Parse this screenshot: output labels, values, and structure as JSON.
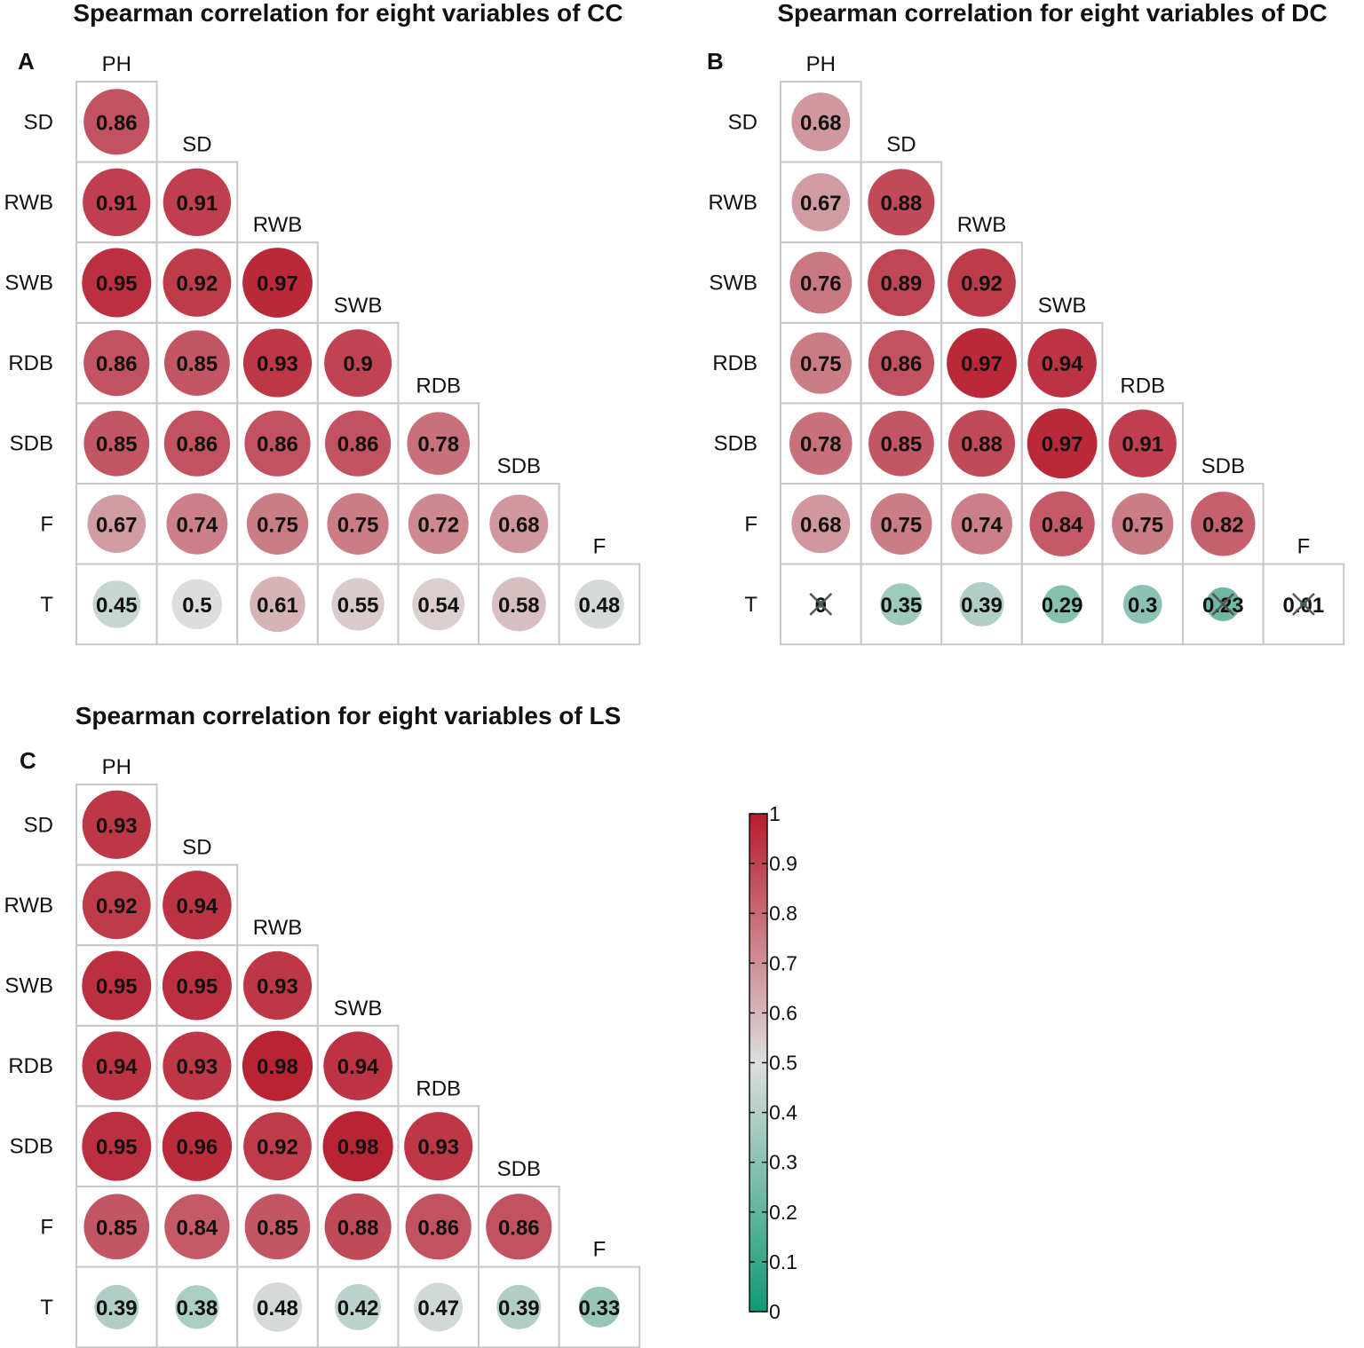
{
  "variables": [
    "PH",
    "SD",
    "RWB",
    "SWB",
    "RDB",
    "SDB",
    "F",
    "T"
  ],
  "chart_data": [
    {
      "type": "heatmap",
      "panel": "A",
      "title": "Spearman correlation for eight variables of CC",
      "col_labels": [
        "PH",
        "SD",
        "RWB",
        "SWB",
        "RDB",
        "SDB",
        "F"
      ],
      "row_labels": [
        "SD",
        "RWB",
        "SWB",
        "RDB",
        "SDB",
        "F",
        "T"
      ],
      "values": [
        [
          0.86
        ],
        [
          0.91,
          0.91
        ],
        [
          0.95,
          0.92,
          0.97
        ],
        [
          0.86,
          0.85,
          0.93,
          0.9
        ],
        [
          0.85,
          0.86,
          0.86,
          0.86,
          0.78
        ],
        [
          0.67,
          0.74,
          0.75,
          0.75,
          0.72,
          0.68
        ],
        [
          0.45,
          0.5,
          0.61,
          0.55,
          0.54,
          0.58,
          0.48
        ]
      ],
      "labels": [
        [
          "0.86"
        ],
        [
          "0.91",
          "0.91"
        ],
        [
          "0.95",
          "0.92",
          "0.97"
        ],
        [
          "0.86",
          "0.85",
          "0.93",
          "0.9"
        ],
        [
          "0.85",
          "0.86",
          "0.86",
          "0.86",
          "0.78"
        ],
        [
          "0.67",
          "0.74",
          "0.75",
          "0.75",
          "0.72",
          "0.68"
        ],
        [
          "0.45",
          "0.5",
          "0.61",
          "0.55",
          "0.54",
          "0.58",
          "0.48"
        ]
      ],
      "crossed": []
    },
    {
      "type": "heatmap",
      "panel": "B",
      "title": "Spearman correlation for eight variables of DC",
      "col_labels": [
        "PH",
        "SD",
        "RWB",
        "SWB",
        "RDB",
        "SDB",
        "F"
      ],
      "row_labels": [
        "SD",
        "RWB",
        "SWB",
        "RDB",
        "SDB",
        "F",
        "T"
      ],
      "values": [
        [
          0.68
        ],
        [
          0.67,
          0.88
        ],
        [
          0.76,
          0.89,
          0.92
        ],
        [
          0.75,
          0.86,
          0.97,
          0.94
        ],
        [
          0.78,
          0.85,
          0.88,
          0.97,
          0.91
        ],
        [
          0.68,
          0.75,
          0.74,
          0.84,
          0.75,
          0.82
        ],
        [
          0,
          0.35,
          0.39,
          0.29,
          0.3,
          0.23,
          0.01
        ]
      ],
      "labels": [
        [
          "0.68"
        ],
        [
          "0.67",
          "0.88"
        ],
        [
          "0.76",
          "0.89",
          "0.92"
        ],
        [
          "0.75",
          "0.86",
          "0.97",
          "0.94"
        ],
        [
          "0.78",
          "0.85",
          "0.88",
          "0.97",
          "0.91"
        ],
        [
          "0.68",
          "0.75",
          "0.74",
          "0.84",
          "0.75",
          "0.82"
        ],
        [
          "0",
          "0.35",
          "0.39",
          "0.29",
          "0.3",
          "0.23",
          "0.01"
        ]
      ],
      "crossed": [
        [
          6,
          0
        ],
        [
          6,
          5
        ],
        [
          6,
          6
        ]
      ]
    },
    {
      "type": "heatmap",
      "panel": "C",
      "title": "Spearman correlation for eight variables of LS",
      "col_labels": [
        "PH",
        "SD",
        "RWB",
        "SWB",
        "RDB",
        "SDB",
        "F"
      ],
      "row_labels": [
        "SD",
        "RWB",
        "SWB",
        "RDB",
        "SDB",
        "F",
        "T"
      ],
      "values": [
        [
          0.93
        ],
        [
          0.92,
          0.94
        ],
        [
          0.95,
          0.95,
          0.93
        ],
        [
          0.94,
          0.93,
          0.98,
          0.94
        ],
        [
          0.95,
          0.96,
          0.92,
          0.98,
          0.93
        ],
        [
          0.85,
          0.84,
          0.85,
          0.88,
          0.86,
          0.86
        ],
        [
          0.39,
          0.38,
          0.48,
          0.42,
          0.47,
          0.39,
          0.33
        ]
      ],
      "labels": [
        [
          "0.93"
        ],
        [
          "0.92",
          "0.94"
        ],
        [
          "0.95",
          "0.95",
          "0.93"
        ],
        [
          "0.94",
          "0.93",
          "0.98",
          "0.94"
        ],
        [
          "0.95",
          "0.96",
          "0.92",
          "0.98",
          "0.93"
        ],
        [
          "0.85",
          "0.84",
          "0.85",
          "0.88",
          "0.86",
          "0.86"
        ],
        [
          "0.39",
          "0.38",
          "0.48",
          "0.42",
          "0.47",
          "0.39",
          "0.33"
        ]
      ],
      "crossed": []
    }
  ],
  "colorbar": {
    "range": [
      0,
      1
    ],
    "ticks": [
      "0",
      "0.1",
      "0.2",
      "0.3",
      "0.4",
      "0.5",
      "0.6",
      "0.7",
      "0.8",
      "0.9",
      "1"
    ],
    "colors": {
      "low": "#0f9a73",
      "mid": "#dddddd",
      "high": "#b81c2e"
    }
  }
}
